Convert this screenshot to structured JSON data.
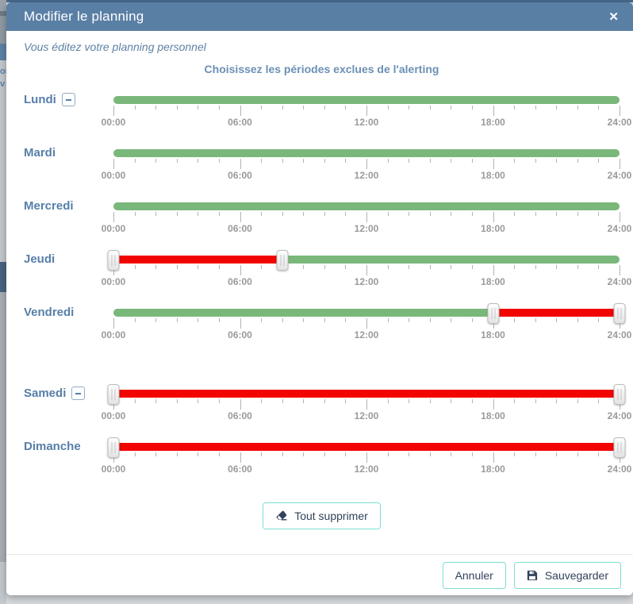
{
  "background": {
    "left_edge_text_fragments": [
      "or",
      "v"
    ]
  },
  "modal": {
    "title": "Modifier le planning",
    "close_glyph": "✕",
    "subtitle": "Vous éditez votre planning personnel",
    "heading": "Choisissez les périodes exclues de l'alerting"
  },
  "colors": {
    "header_bg": "#5a7fa5",
    "subtitle": "#5e81a4",
    "heading": "#6b90b5",
    "day_label": "#567fa9",
    "active_segment": "#7ab77a",
    "excluded_segment": "#f20400",
    "tick": "#b3b3b3",
    "time_label": "#9a9a9a",
    "button_border": "#7ce0d3",
    "button_text": "#31425a",
    "footer_divider": "#e8e8e8"
  },
  "timeline": {
    "hours_total": 24,
    "major_every": 6,
    "tick_labels": [
      "00:00",
      "06:00",
      "12:00",
      "18:00",
      "24:00"
    ],
    "tick_label_hours": [
      0,
      6,
      12,
      18,
      24
    ]
  },
  "days": [
    {
      "label": "Lundi",
      "removable": true,
      "gap_before": false,
      "segments": [
        {
          "start": 0,
          "end": 24,
          "state": "active"
        }
      ],
      "handles": []
    },
    {
      "label": "Mardi",
      "removable": false,
      "gap_before": false,
      "segments": [
        {
          "start": 0,
          "end": 24,
          "state": "active"
        }
      ],
      "handles": []
    },
    {
      "label": "Mercredi",
      "removable": false,
      "gap_before": false,
      "segments": [
        {
          "start": 0,
          "end": 24,
          "state": "active"
        }
      ],
      "handles": []
    },
    {
      "label": "Jeudi",
      "removable": false,
      "gap_before": false,
      "segments": [
        {
          "start": 0,
          "end": 8,
          "state": "excluded"
        },
        {
          "start": 8,
          "end": 24,
          "state": "active"
        }
      ],
      "handles": [
        0,
        8
      ]
    },
    {
      "label": "Vendredi",
      "removable": false,
      "gap_before": false,
      "segments": [
        {
          "start": 0,
          "end": 18,
          "state": "active"
        },
        {
          "start": 18,
          "end": 24,
          "state": "excluded"
        }
      ],
      "handles": [
        18,
        24
      ]
    },
    {
      "label": "Samedi",
      "removable": true,
      "gap_before": true,
      "segments": [
        {
          "start": 0,
          "end": 24,
          "state": "excluded"
        }
      ],
      "handles": [
        0,
        24
      ]
    },
    {
      "label": "Dimanche",
      "removable": false,
      "gap_before": false,
      "segments": [
        {
          "start": 0,
          "end": 24,
          "state": "excluded"
        }
      ],
      "handles": [
        0,
        24
      ]
    }
  ],
  "buttons": {
    "delete_all": "Tout supprimer",
    "cancel": "Annuler",
    "save": "Sauvegarder"
  }
}
